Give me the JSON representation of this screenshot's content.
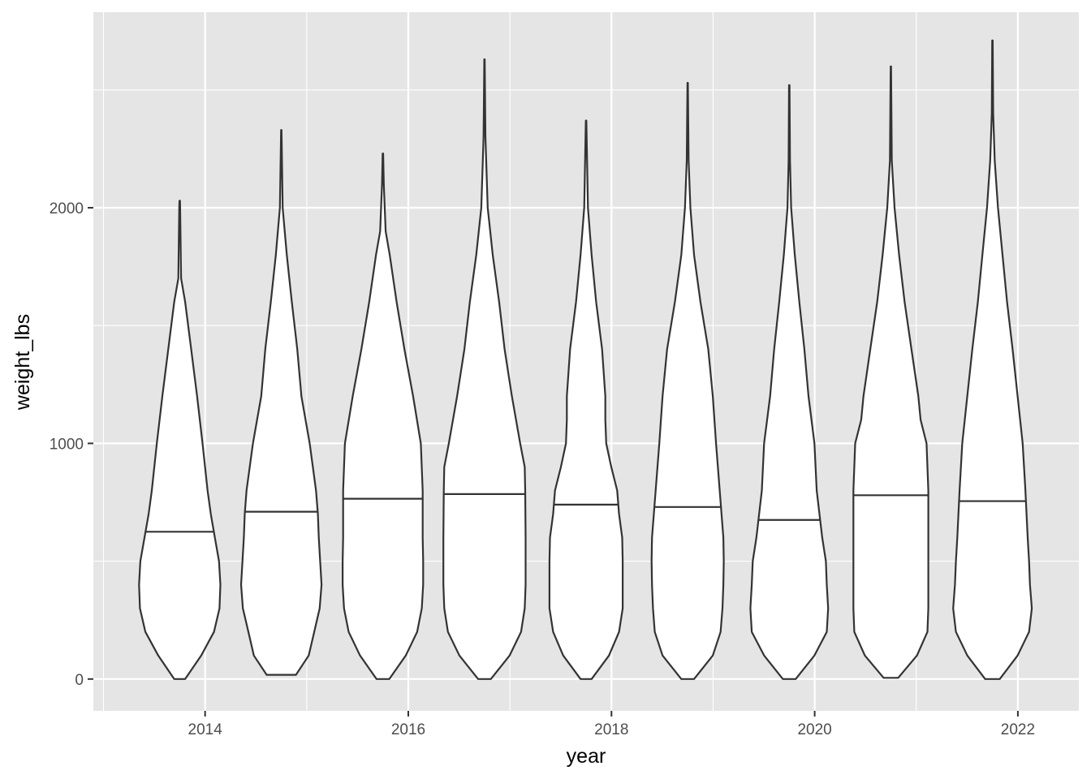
{
  "chart_data": {
    "type": "violin",
    "xlabel": "year",
    "ylabel": "weight_lbs",
    "xlim": [
      2012.9,
      2022.6
    ],
    "ylim": [
      -135,
      2830
    ],
    "x_ticks": [
      2014,
      2016,
      2018,
      2020,
      2022
    ],
    "x_tick_labels": [
      "2014",
      "2016",
      "2018",
      "2020",
      "2022"
    ],
    "y_ticks": [
      0,
      1000,
      2000
    ],
    "y_tick_labels": [
      "0",
      "1000",
      "2000"
    ],
    "grid": true,
    "legend": "none",
    "colors": {
      "panel": "#e5e5e5",
      "grid": "#ffffff",
      "violin_fill": "#ffffff",
      "violin_stroke": "#333333"
    },
    "max_half_width_years": 0.45,
    "violins": [
      {
        "year": 2014,
        "median": 625,
        "min": 0,
        "max": 2030,
        "profile": [
          [
            0,
            0.12
          ],
          [
            100,
            0.47
          ],
          [
            200,
            0.75
          ],
          [
            300,
            0.87
          ],
          [
            400,
            0.89
          ],
          [
            500,
            0.86
          ],
          [
            600,
            0.77
          ],
          [
            700,
            0.68
          ],
          [
            800,
            0.61
          ],
          [
            1000,
            0.5
          ],
          [
            1200,
            0.38
          ],
          [
            1400,
            0.25
          ],
          [
            1600,
            0.12
          ],
          [
            1700,
            0.03
          ],
          [
            2000,
            0.01
          ],
          [
            2030,
            0.005
          ]
        ]
      },
      {
        "year": 2015,
        "median": 710,
        "min": 18,
        "max": 2330,
        "profile": [
          [
            18,
            0.32
          ],
          [
            100,
            0.6
          ],
          [
            200,
            0.72
          ],
          [
            300,
            0.84
          ],
          [
            400,
            0.88
          ],
          [
            500,
            0.85
          ],
          [
            600,
            0.82
          ],
          [
            700,
            0.8
          ],
          [
            800,
            0.76
          ],
          [
            1000,
            0.62
          ],
          [
            1200,
            0.44
          ],
          [
            1400,
            0.35
          ],
          [
            1600,
            0.23
          ],
          [
            1800,
            0.12
          ],
          [
            2000,
            0.03
          ],
          [
            2330,
            0.005
          ]
        ]
      },
      {
        "year": 2016,
        "median": 765,
        "min": 0,
        "max": 2230,
        "profile": [
          [
            0,
            0.14
          ],
          [
            100,
            0.5
          ],
          [
            200,
            0.75
          ],
          [
            300,
            0.85
          ],
          [
            400,
            0.88
          ],
          [
            500,
            0.88
          ],
          [
            600,
            0.87
          ],
          [
            800,
            0.87
          ],
          [
            1000,
            0.83
          ],
          [
            1200,
            0.66
          ],
          [
            1400,
            0.47
          ],
          [
            1600,
            0.3
          ],
          [
            1800,
            0.15
          ],
          [
            1900,
            0.06
          ],
          [
            2100,
            0.02
          ],
          [
            2230,
            0.005
          ]
        ]
      },
      {
        "year": 2017,
        "median": 785,
        "min": 0,
        "max": 2630,
        "profile": [
          [
            0,
            0.14
          ],
          [
            100,
            0.55
          ],
          [
            200,
            0.8
          ],
          [
            300,
            0.88
          ],
          [
            400,
            0.9
          ],
          [
            500,
            0.9
          ],
          [
            600,
            0.9
          ],
          [
            800,
            0.89
          ],
          [
            900,
            0.88
          ],
          [
            1000,
            0.78
          ],
          [
            1200,
            0.6
          ],
          [
            1400,
            0.44
          ],
          [
            1600,
            0.32
          ],
          [
            1800,
            0.18
          ],
          [
            2000,
            0.07
          ],
          [
            2300,
            0.02
          ],
          [
            2630,
            0.005
          ]
        ]
      },
      {
        "year": 2018,
        "median": 740,
        "min": 0,
        "max": 2370,
        "profile": [
          [
            0,
            0.12
          ],
          [
            100,
            0.5
          ],
          [
            200,
            0.72
          ],
          [
            300,
            0.8
          ],
          [
            400,
            0.8
          ],
          [
            500,
            0.8
          ],
          [
            600,
            0.79
          ],
          [
            700,
            0.72
          ],
          [
            800,
            0.68
          ],
          [
            900,
            0.55
          ],
          [
            1000,
            0.44
          ],
          [
            1100,
            0.42
          ],
          [
            1200,
            0.42
          ],
          [
            1400,
            0.35
          ],
          [
            1600,
            0.22
          ],
          [
            1800,
            0.12
          ],
          [
            2000,
            0.04
          ],
          [
            2370,
            0.005
          ]
        ]
      },
      {
        "year": 2019,
        "median": 730,
        "min": 0,
        "max": 2530,
        "profile": [
          [
            0,
            0.14
          ],
          [
            100,
            0.55
          ],
          [
            200,
            0.72
          ],
          [
            300,
            0.76
          ],
          [
            400,
            0.78
          ],
          [
            500,
            0.79
          ],
          [
            600,
            0.78
          ],
          [
            800,
            0.7
          ],
          [
            1000,
            0.62
          ],
          [
            1200,
            0.55
          ],
          [
            1400,
            0.45
          ],
          [
            1600,
            0.28
          ],
          [
            1800,
            0.14
          ],
          [
            2000,
            0.06
          ],
          [
            2200,
            0.02
          ],
          [
            2530,
            0.005
          ]
        ]
      },
      {
        "year": 2020,
        "median": 675,
        "min": 0,
        "max": 2520,
        "profile": [
          [
            0,
            0.14
          ],
          [
            100,
            0.55
          ],
          [
            200,
            0.82
          ],
          [
            300,
            0.85
          ],
          [
            400,
            0.82
          ],
          [
            500,
            0.8
          ],
          [
            600,
            0.72
          ],
          [
            800,
            0.6
          ],
          [
            1000,
            0.55
          ],
          [
            1200,
            0.42
          ],
          [
            1400,
            0.33
          ],
          [
            1600,
            0.22
          ],
          [
            1800,
            0.12
          ],
          [
            2000,
            0.04
          ],
          [
            2200,
            0.015
          ],
          [
            2520,
            0.005
          ]
        ]
      },
      {
        "year": 2021,
        "median": 780,
        "min": 5,
        "max": 2600,
        "profile": [
          [
            5,
            0.16
          ],
          [
            100,
            0.57
          ],
          [
            200,
            0.8
          ],
          [
            300,
            0.82
          ],
          [
            400,
            0.82
          ],
          [
            600,
            0.82
          ],
          [
            800,
            0.82
          ],
          [
            1000,
            0.78
          ],
          [
            1100,
            0.65
          ],
          [
            1200,
            0.6
          ],
          [
            1400,
            0.45
          ],
          [
            1600,
            0.3
          ],
          [
            1800,
            0.18
          ],
          [
            2000,
            0.08
          ],
          [
            2200,
            0.02
          ],
          [
            2600,
            0.005
          ]
        ]
      },
      {
        "year": 2022,
        "median": 755,
        "min": 0,
        "max": 2710,
        "profile": [
          [
            0,
            0.16
          ],
          [
            100,
            0.55
          ],
          [
            200,
            0.8
          ],
          [
            300,
            0.86
          ],
          [
            400,
            0.82
          ],
          [
            500,
            0.8
          ],
          [
            600,
            0.77
          ],
          [
            800,
            0.72
          ],
          [
            1000,
            0.66
          ],
          [
            1200,
            0.55
          ],
          [
            1400,
            0.44
          ],
          [
            1600,
            0.32
          ],
          [
            1800,
            0.22
          ],
          [
            2000,
            0.12
          ],
          [
            2200,
            0.05
          ],
          [
            2400,
            0.015
          ],
          [
            2710,
            0.005
          ]
        ]
      }
    ]
  }
}
